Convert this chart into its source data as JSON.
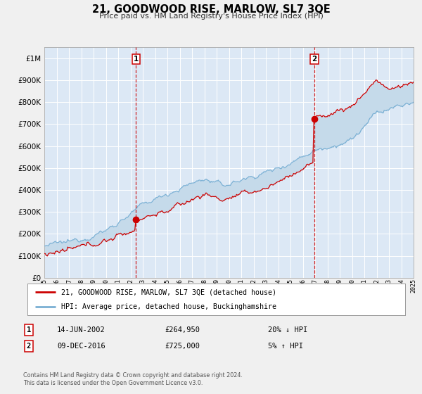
{
  "title": "21, GOODWOOD RISE, MARLOW, SL7 3QE",
  "subtitle": "Price paid vs. HM Land Registry's House Price Index (HPI)",
  "fig_bg_color": "#f0f0f0",
  "plot_bg_color": "#dce8f5",
  "grid_color": "#ffffff",
  "hpi_line_color": "#7ab0d4",
  "price_line_color": "#cc0000",
  "fill_color": "#c5daea",
  "sale1_date_num": 2002.45,
  "sale1_price": 264950,
  "sale1_label": "1",
  "sale2_date_num": 2016.94,
  "sale2_price": 725000,
  "sale2_label": "2",
  "xmin": 1995,
  "xmax": 2025,
  "ymin": 0,
  "ymax": 1050000,
  "legend_price_label": "21, GOODWOOD RISE, MARLOW, SL7 3QE (detached house)",
  "legend_hpi_label": "HPI: Average price, detached house, Buckinghamshire",
  "annotation1_date": "14-JUN-2002",
  "annotation1_price": "£264,950",
  "annotation1_pct": "20% ↓ HPI",
  "annotation2_date": "09-DEC-2016",
  "annotation2_price": "£725,000",
  "annotation2_pct": "5% ↑ HPI",
  "footer1": "Contains HM Land Registry data © Crown copyright and database right 2024.",
  "footer2": "This data is licensed under the Open Government Licence v3.0."
}
